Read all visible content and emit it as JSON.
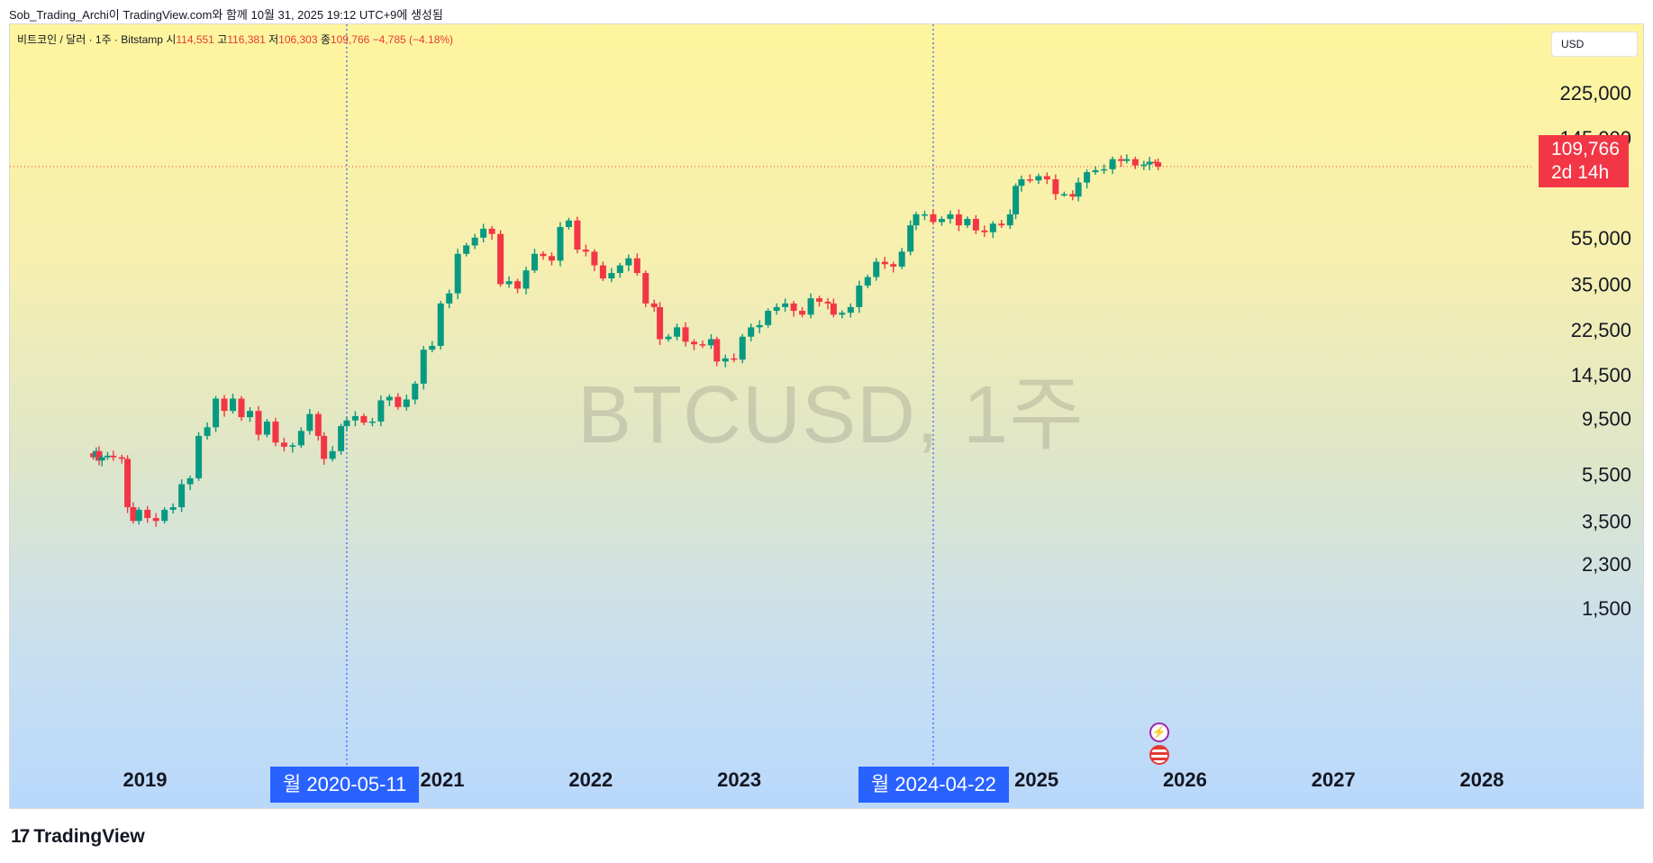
{
  "header": {
    "caption": "Sob_Trading_Archi이 TradingView.com와 함께 10월 31, 2025 19:12 UTC+9에 생성됨"
  },
  "symbol": {
    "name": "비트코인 / 달러 · 1주 · Bitstamp",
    "open_label": "시",
    "open": "114,551",
    "high_label": "고",
    "high": "116,381",
    "low_label": "저",
    "low": "106,303",
    "close_label": "종",
    "close": "109,766",
    "change": "−4,785 (−4.18%)"
  },
  "watermark": "BTCUSD, 1주",
  "currency": "USD",
  "price_tag": {
    "price": "109,766",
    "countdown": "2d 14h",
    "color": "#f23645"
  },
  "crosshair_labels": {
    "first": "월 2020-05-11",
    "second": "월 2024-04-22",
    "color": "#2962ff"
  },
  "logo": "TradingView",
  "icons": [
    "flash-icon",
    "us-flag-icon"
  ],
  "colors": {
    "up": "#089981",
    "down": "#f23645"
  },
  "chart_data": {
    "type": "candlestick",
    "y_scale": "log",
    "y_ticks": [
      "225,000",
      "145,000",
      "55,000",
      "35,000",
      "22,500",
      "14,500",
      "9,500",
      "5,500",
      "3,500",
      "2,300",
      "1,500"
    ],
    "x_ticks": [
      "2019",
      "2021",
      "2022",
      "2023",
      "2025",
      "2026",
      "2027",
      "2028"
    ],
    "ohlc": [
      {
        "t": "2018-08-27",
        "c": 6500
      },
      {
        "t": "2018-09-03",
        "c": 6900
      },
      {
        "t": "2018-09-10",
        "c": 6300
      },
      {
        "t": "2018-09-17",
        "c": 6500
      },
      {
        "t": "2018-10-01",
        "c": 6600
      },
      {
        "t": "2018-10-15",
        "c": 6500
      },
      {
        "t": "2018-11-05",
        "c": 6400
      },
      {
        "t": "2018-11-19",
        "c": 4000
      },
      {
        "t": "2018-12-03",
        "c": 3500
      },
      {
        "t": "2018-12-17",
        "c": 3900
      },
      {
        "t": "2019-01-07",
        "c": 3600
      },
      {
        "t": "2019-01-28",
        "c": 3500
      },
      {
        "t": "2019-02-18",
        "c": 3900
      },
      {
        "t": "2019-03-11",
        "c": 4000
      },
      {
        "t": "2019-04-01",
        "c": 5000
      },
      {
        "t": "2019-04-22",
        "c": 5300
      },
      {
        "t": "2019-05-13",
        "c": 8000
      },
      {
        "t": "2019-06-03",
        "c": 8700
      },
      {
        "t": "2019-06-24",
        "c": 11500
      },
      {
        "t": "2019-07-15",
        "c": 10200
      },
      {
        "t": "2019-08-05",
        "c": 11500
      },
      {
        "t": "2019-08-26",
        "c": 9600
      },
      {
        "t": "2019-09-16",
        "c": 10200
      },
      {
        "t": "2019-10-07",
        "c": 8100
      },
      {
        "t": "2019-10-28",
        "c": 9200
      },
      {
        "t": "2019-11-18",
        "c": 7500
      },
      {
        "t": "2019-12-09",
        "c": 7200
      },
      {
        "t": "2019-12-30",
        "c": 7300
      },
      {
        "t": "2020-01-20",
        "c": 8400
      },
      {
        "t": "2020-02-10",
        "c": 9900
      },
      {
        "t": "2020-03-02",
        "c": 8000
      },
      {
        "t": "2020-03-16",
        "c": 6400
      },
      {
        "t": "2020-04-06",
        "c": 6900
      },
      {
        "t": "2020-04-27",
        "c": 8800
      },
      {
        "t": "2020-05-11",
        "c": 9300
      },
      {
        "t": "2020-06-01",
        "c": 9700
      },
      {
        "t": "2020-06-22",
        "c": 9100
      },
      {
        "t": "2020-07-13",
        "c": 9200
      },
      {
        "t": "2020-08-03",
        "c": 11300
      },
      {
        "t": "2020-08-24",
        "c": 11700
      },
      {
        "t": "2020-09-14",
        "c": 10600
      },
      {
        "t": "2020-10-05",
        "c": 11400
      },
      {
        "t": "2020-10-26",
        "c": 13300
      },
      {
        "t": "2020-11-16",
        "c": 18500
      },
      {
        "t": "2020-12-07",
        "c": 19200
      },
      {
        "t": "2020-12-28",
        "c": 29000
      },
      {
        "t": "2021-01-18",
        "c": 32000
      },
      {
        "t": "2021-02-08",
        "c": 47000
      },
      {
        "t": "2021-03-01",
        "c": 51000
      },
      {
        "t": "2021-03-22",
        "c": 55000
      },
      {
        "t": "2021-04-12",
        "c": 60000
      },
      {
        "t": "2021-05-03",
        "c": 57000
      },
      {
        "t": "2021-05-24",
        "c": 35000
      },
      {
        "t": "2021-06-14",
        "c": 36000
      },
      {
        "t": "2021-07-05",
        "c": 33500
      },
      {
        "t": "2021-07-26",
        "c": 40000
      },
      {
        "t": "2021-08-16",
        "c": 47000
      },
      {
        "t": "2021-09-06",
        "c": 46000
      },
      {
        "t": "2021-09-27",
        "c": 44000
      },
      {
        "t": "2021-10-18",
        "c": 61000
      },
      {
        "t": "2021-11-08",
        "c": 65000
      },
      {
        "t": "2021-11-29",
        "c": 49000
      },
      {
        "t": "2021-12-20",
        "c": 48000
      },
      {
        "t": "2022-01-10",
        "c": 42000
      },
      {
        "t": "2022-01-31",
        "c": 37000
      },
      {
        "t": "2022-02-21",
        "c": 39000
      },
      {
        "t": "2022-03-14",
        "c": 42000
      },
      {
        "t": "2022-04-04",
        "c": 45000
      },
      {
        "t": "2022-04-25",
        "c": 39000
      },
      {
        "t": "2022-05-16",
        "c": 29000
      },
      {
        "t": "2022-06-06",
        "c": 28000
      },
      {
        "t": "2022-06-20",
        "c": 20500
      },
      {
        "t": "2022-07-11",
        "c": 21000
      },
      {
        "t": "2022-08-01",
        "c": 23000
      },
      {
        "t": "2022-08-22",
        "c": 20000
      },
      {
        "t": "2022-09-12",
        "c": 19500
      },
      {
        "t": "2022-10-03",
        "c": 19300
      },
      {
        "t": "2022-10-24",
        "c": 20500
      },
      {
        "t": "2022-11-07",
        "c": 16500
      },
      {
        "t": "2022-11-28",
        "c": 17000
      },
      {
        "t": "2022-12-19",
        "c": 16800
      },
      {
        "t": "2023-01-09",
        "c": 21000
      },
      {
        "t": "2023-01-30",
        "c": 23000
      },
      {
        "t": "2023-02-20",
        "c": 23500
      },
      {
        "t": "2023-03-13",
        "c": 27000
      },
      {
        "t": "2023-04-03",
        "c": 28000
      },
      {
        "t": "2023-04-24",
        "c": 29000
      },
      {
        "t": "2023-05-15",
        "c": 27000
      },
      {
        "t": "2023-06-05",
        "c": 26000
      },
      {
        "t": "2023-06-26",
        "c": 30500
      },
      {
        "t": "2023-07-17",
        "c": 29500
      },
      {
        "t": "2023-08-07",
        "c": 29000
      },
      {
        "t": "2023-08-21",
        "c": 26000
      },
      {
        "t": "2023-09-11",
        "c": 26500
      },
      {
        "t": "2023-10-02",
        "c": 28000
      },
      {
        "t": "2023-10-23",
        "c": 34500
      },
      {
        "t": "2023-11-13",
        "c": 37500
      },
      {
        "t": "2023-12-04",
        "c": 43500
      },
      {
        "t": "2023-12-25",
        "c": 42500
      },
      {
        "t": "2024-01-15",
        "c": 41500
      },
      {
        "t": "2024-02-05",
        "c": 48000
      },
      {
        "t": "2024-02-26",
        "c": 62000
      },
      {
        "t": "2024-03-11",
        "c": 69000
      },
      {
        "t": "2024-04-01",
        "c": 69000
      },
      {
        "t": "2024-04-22",
        "c": 64000
      },
      {
        "t": "2024-05-13",
        "c": 66000
      },
      {
        "t": "2024-06-03",
        "c": 69000
      },
      {
        "t": "2024-06-24",
        "c": 62000
      },
      {
        "t": "2024-07-15",
        "c": 66000
      },
      {
        "t": "2024-08-05",
        "c": 59000
      },
      {
        "t": "2024-08-26",
        "c": 58000
      },
      {
        "t": "2024-09-16",
        "c": 63000
      },
      {
        "t": "2024-10-07",
        "c": 62000
      },
      {
        "t": "2024-10-28",
        "c": 69000
      },
      {
        "t": "2024-11-11",
        "c": 91000
      },
      {
        "t": "2024-11-25",
        "c": 97000
      },
      {
        "t": "2024-12-16",
        "c": 96000
      },
      {
        "t": "2025-01-06",
        "c": 100000
      },
      {
        "t": "2025-01-27",
        "c": 97000
      },
      {
        "t": "2025-02-17",
        "c": 84000
      },
      {
        "t": "2025-03-10",
        "c": 84000
      },
      {
        "t": "2025-03-31",
        "c": 82000
      },
      {
        "t": "2025-04-14",
        "c": 94000
      },
      {
        "t": "2025-05-05",
        "c": 104000
      },
      {
        "t": "2025-05-26",
        "c": 106000
      },
      {
        "t": "2025-06-16",
        "c": 107000
      },
      {
        "t": "2025-07-07",
        "c": 118000
      },
      {
        "t": "2025-07-28",
        "c": 116000
      },
      {
        "t": "2025-08-11",
        "c": 118000
      },
      {
        "t": "2025-09-01",
        "c": 111000
      },
      {
        "t": "2025-09-22",
        "c": 112000
      },
      {
        "t": "2025-10-06",
        "c": 115000
      },
      {
        "t": "2025-10-20",
        "c": 114551
      },
      {
        "t": "2025-10-27",
        "c": 109766
      }
    ],
    "last_price": 109766
  }
}
